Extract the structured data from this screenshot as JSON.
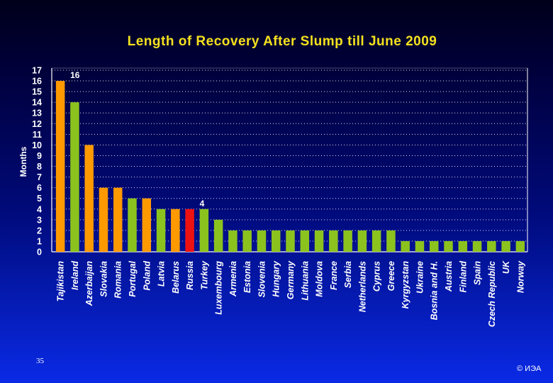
{
  "footer": {
    "page_number": "35",
    "copyright": "© ИЭА"
  },
  "chart_data": {
    "type": "bar",
    "title": "Length of Recovery After Slump till June 2009",
    "ylabel": "Months",
    "xlabel": "",
    "ylim": [
      0,
      17
    ],
    "yticks": [
      0,
      1,
      2,
      3,
      4,
      5,
      6,
      7,
      8,
      9,
      10,
      11,
      12,
      13,
      14,
      15,
      16,
      17
    ],
    "grid": true,
    "categories": [
      "Tajikistan",
      "Ireland",
      "Azerbaijan",
      "Slovakia",
      "Romania",
      "Portugal",
      "Poland",
      "Latvia",
      "Belarus",
      "Russia",
      "Turkey",
      "Luxembourg",
      "Armenia",
      "Estonia",
      "Slovenia",
      "Hungary",
      "Germany",
      "Lithuania",
      "Moldova",
      "France",
      "Serbia",
      "Netherlands",
      "Cyprus",
      "Greece",
      "Kyrgyzstan",
      "Ukraine",
      "Bosnia and H.",
      "Austria",
      "Finland",
      "Spain",
      "Czech Republic",
      "UK",
      "Norway"
    ],
    "values": [
      16,
      14,
      10,
      6,
      6,
      5,
      5,
      4,
      4,
      4,
      4,
      3,
      2,
      2,
      2,
      2,
      2,
      2,
      2,
      2,
      2,
      2,
      2,
      2,
      1,
      1,
      1,
      1,
      1,
      1,
      1,
      1,
      1
    ],
    "colors": [
      "#ff9900",
      "#8cc21e",
      "#ff9900",
      "#ff9900",
      "#ff9900",
      "#8cc21e",
      "#ff9900",
      "#8cc21e",
      "#ff9900",
      "#ee1111",
      "#8cc21e",
      "#8cc21e",
      "#8cc21e",
      "#8cc21e",
      "#8cc21e",
      "#8cc21e",
      "#8cc21e",
      "#8cc21e",
      "#8cc21e",
      "#8cc21e",
      "#8cc21e",
      "#8cc21e",
      "#8cc21e",
      "#8cc21e",
      "#8cc21e",
      "#8cc21e",
      "#8cc21e",
      "#8cc21e",
      "#8cc21e",
      "#8cc21e",
      "#8cc21e",
      "#8cc21e",
      "#8cc21e"
    ],
    "data_labels": [
      {
        "index": 0,
        "text": "16"
      },
      {
        "index": 9,
        "text": "4"
      }
    ]
  }
}
